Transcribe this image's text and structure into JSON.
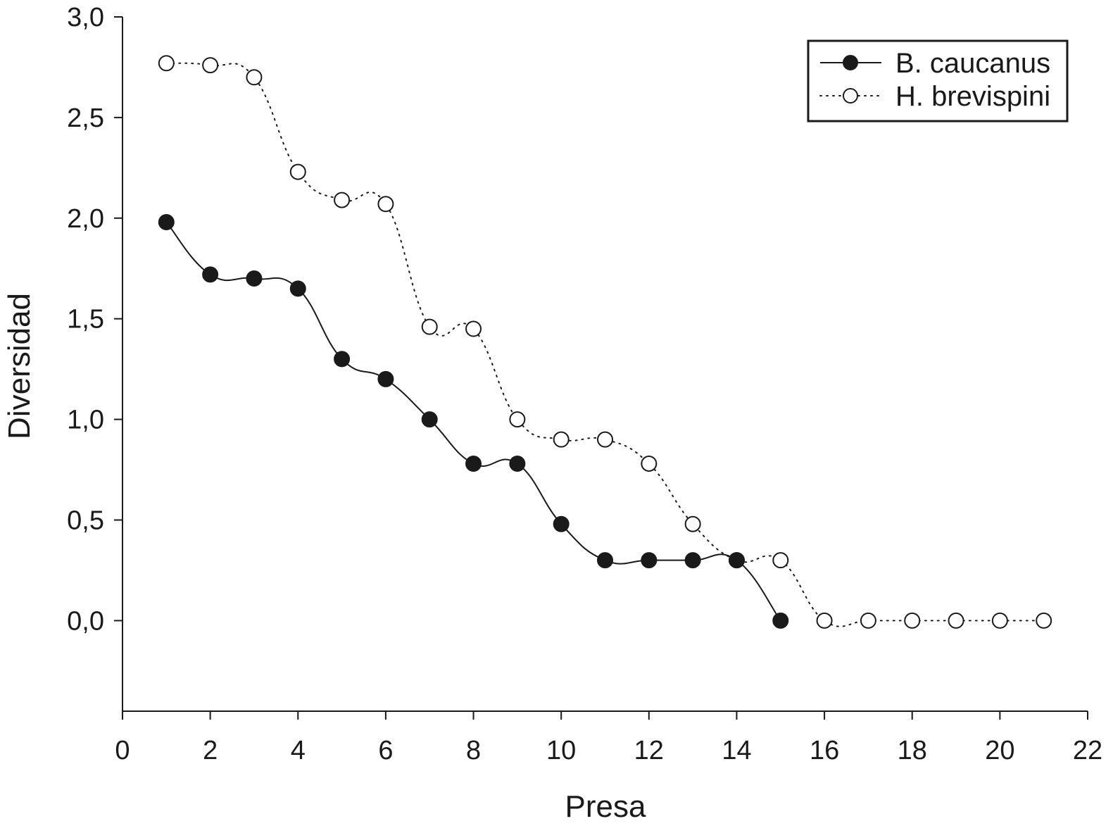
{
  "chart_data": {
    "type": "line",
    "xlabel": "Presa",
    "ylabel": "Diversidad",
    "xlim": [
      0,
      22
    ],
    "ylim": [
      -0.45,
      3.0
    ],
    "x_ticks": [
      0,
      2,
      4,
      6,
      8,
      10,
      12,
      14,
      16,
      18,
      20,
      22
    ],
    "x_tick_labels": [
      "0",
      "2",
      "4",
      "6",
      "8",
      "10",
      "12",
      "14",
      "16",
      "18",
      "20",
      "22"
    ],
    "y_ticks": [
      0.0,
      0.5,
      1.0,
      1.5,
      2.0,
      2.5,
      3.0
    ],
    "y_tick_labels": [
      "0,0",
      "0,5",
      "1,0",
      "1,5",
      "2,0",
      "2,5",
      "3,0"
    ],
    "grid": false,
    "legend_position": "top-right",
    "series": [
      {
        "name": "B. caucanus",
        "marker": "filled-circle",
        "line_style": "solid",
        "x": [
          1,
          2,
          3,
          4,
          5,
          6,
          7,
          8,
          9,
          10,
          11,
          12,
          13,
          14,
          15
        ],
        "y": [
          1.98,
          1.72,
          1.7,
          1.65,
          1.3,
          1.2,
          1.0,
          0.78,
          0.78,
          0.48,
          0.3,
          0.3,
          0.3,
          0.3,
          0.0
        ]
      },
      {
        "name": "H. brevispini",
        "marker": "open-circle",
        "line_style": "dotted",
        "x": [
          1,
          2,
          3,
          4,
          5,
          6,
          7,
          8,
          9,
          10,
          11,
          12,
          13,
          14,
          15,
          16,
          17,
          18,
          19,
          20,
          21
        ],
        "y": [
          2.77,
          2.76,
          2.7,
          2.23,
          2.09,
          2.07,
          1.46,
          1.45,
          1.0,
          0.9,
          0.9,
          0.78,
          0.48,
          0.3,
          0.3,
          0.0,
          0.0,
          0.0,
          0.0,
          0.0,
          0.0
        ]
      }
    ],
    "colors": {
      "ink": "#1a1a1a",
      "background": "#ffffff",
      "open_marker_fill": "#ffffff"
    }
  }
}
